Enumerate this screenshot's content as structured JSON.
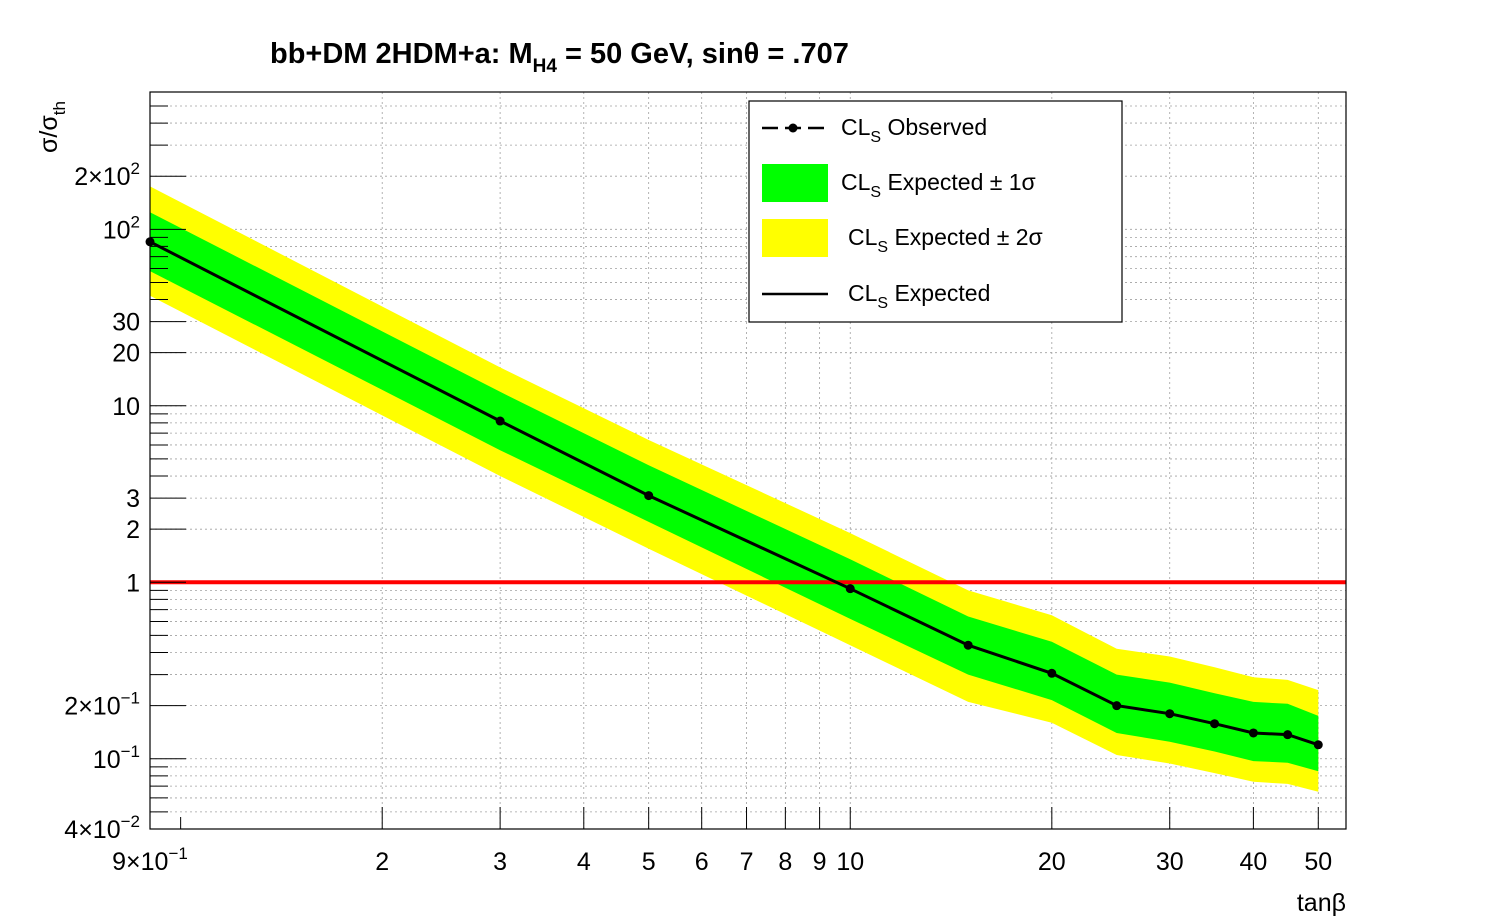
{
  "chart_data": {
    "type": "line",
    "title": {
      "prefix": "bb+DM 2HDM+a: M",
      "subscript": "H4",
      "suffix": " = 50 GeV, sinθ = .707"
    },
    "xlabel": "tanβ",
    "ylabel": {
      "main": "σ/σ",
      "subscript": "th"
    },
    "xscale": "log",
    "yscale": "log",
    "xlim": [
      0.9,
      55
    ],
    "ylim": [
      0.04,
      600
    ],
    "grid": true,
    "legend_position": "top-right",
    "x_ticks": [
      {
        "value": 0.9,
        "base": "9×10",
        "exp": "−1"
      },
      {
        "value": 2,
        "text": "2"
      },
      {
        "value": 3,
        "text": "3"
      },
      {
        "value": 4,
        "text": "4"
      },
      {
        "value": 5,
        "text": "5"
      },
      {
        "value": 6,
        "text": "6"
      },
      {
        "value": 7,
        "text": "7"
      },
      {
        "value": 8,
        "text": "8"
      },
      {
        "value": 9,
        "text": "9"
      },
      {
        "value": 10,
        "text": "10"
      },
      {
        "value": 20,
        "text": "20"
      },
      {
        "value": 30,
        "text": "30"
      },
      {
        "value": 40,
        "text": "40"
      },
      {
        "value": 50,
        "text": "50"
      }
    ],
    "y_ticks": [
      {
        "value": 200,
        "base": "2×10",
        "exp": "2"
      },
      {
        "value": 100,
        "base": "10",
        "exp": "2"
      },
      {
        "value": 30,
        "text": "30"
      },
      {
        "value": 20,
        "text": "20"
      },
      {
        "value": 10,
        "text": "10"
      },
      {
        "value": 3,
        "text": "3"
      },
      {
        "value": 2,
        "text": "2"
      },
      {
        "value": 1,
        "text": "1"
      },
      {
        "value": 0.2,
        "base": "2×10",
        "exp": "−1"
      },
      {
        "value": 0.1,
        "base": "10",
        "exp": "−1"
      },
      {
        "value": 0.04,
        "base": "4×10",
        "exp": "−2"
      }
    ],
    "x": [
      0.9,
      3,
      5,
      10,
      15,
      20,
      25,
      30,
      35,
      40,
      45,
      50
    ],
    "series": [
      {
        "name": "CL_S Observed",
        "label_parts": {
          "main": "CL",
          "sub": "S",
          "rest": " Observed"
        },
        "style": "dashed-markers",
        "color": "#000000",
        "values": [
          85,
          8.2,
          3.1,
          0.92,
          0.44,
          0.305,
          0.2,
          0.18,
          0.158,
          0.14,
          0.137,
          0.12
        ]
      },
      {
        "name": "CL_S Expected ± 1σ",
        "label_parts": {
          "main": "CL",
          "sub": "S",
          "rest": "  Expected  ± 1σ"
        },
        "style": "band",
        "color": "#00ff00",
        "lower": [
          58,
          5.6,
          2.2,
          0.62,
          0.3,
          0.215,
          0.14,
          0.125,
          0.11,
          0.097,
          0.095,
          0.085
        ],
        "upper": [
          125,
          12,
          4.6,
          1.35,
          0.64,
          0.46,
          0.3,
          0.27,
          0.235,
          0.21,
          0.205,
          0.175
        ]
      },
      {
        "name": "CL_S Expected ± 2σ",
        "label_parts": {
          "main": "CL",
          "sub": "S",
          "rest": "  Expected  ± 2σ"
        },
        "style": "band",
        "color": "#ffff00",
        "lower": [
          42,
          4.0,
          1.55,
          0.44,
          0.21,
          0.16,
          0.105,
          0.094,
          0.083,
          0.074,
          0.072,
          0.065
        ],
        "upper": [
          175,
          16.5,
          6.4,
          1.9,
          0.9,
          0.65,
          0.42,
          0.38,
          0.33,
          0.29,
          0.28,
          0.245
        ]
      },
      {
        "name": "CL_S Expected",
        "label_parts": {
          "main": "CL",
          "sub": "S",
          "rest": "  Expected"
        },
        "style": "line",
        "color": "#000000",
        "values": [
          85,
          8.2,
          3.1,
          0.92,
          0.44,
          0.305,
          0.2,
          0.18,
          0.158,
          0.14,
          0.137,
          0.12
        ]
      }
    ],
    "reference_line": {
      "y": 1,
      "color": "#ff0000"
    }
  }
}
